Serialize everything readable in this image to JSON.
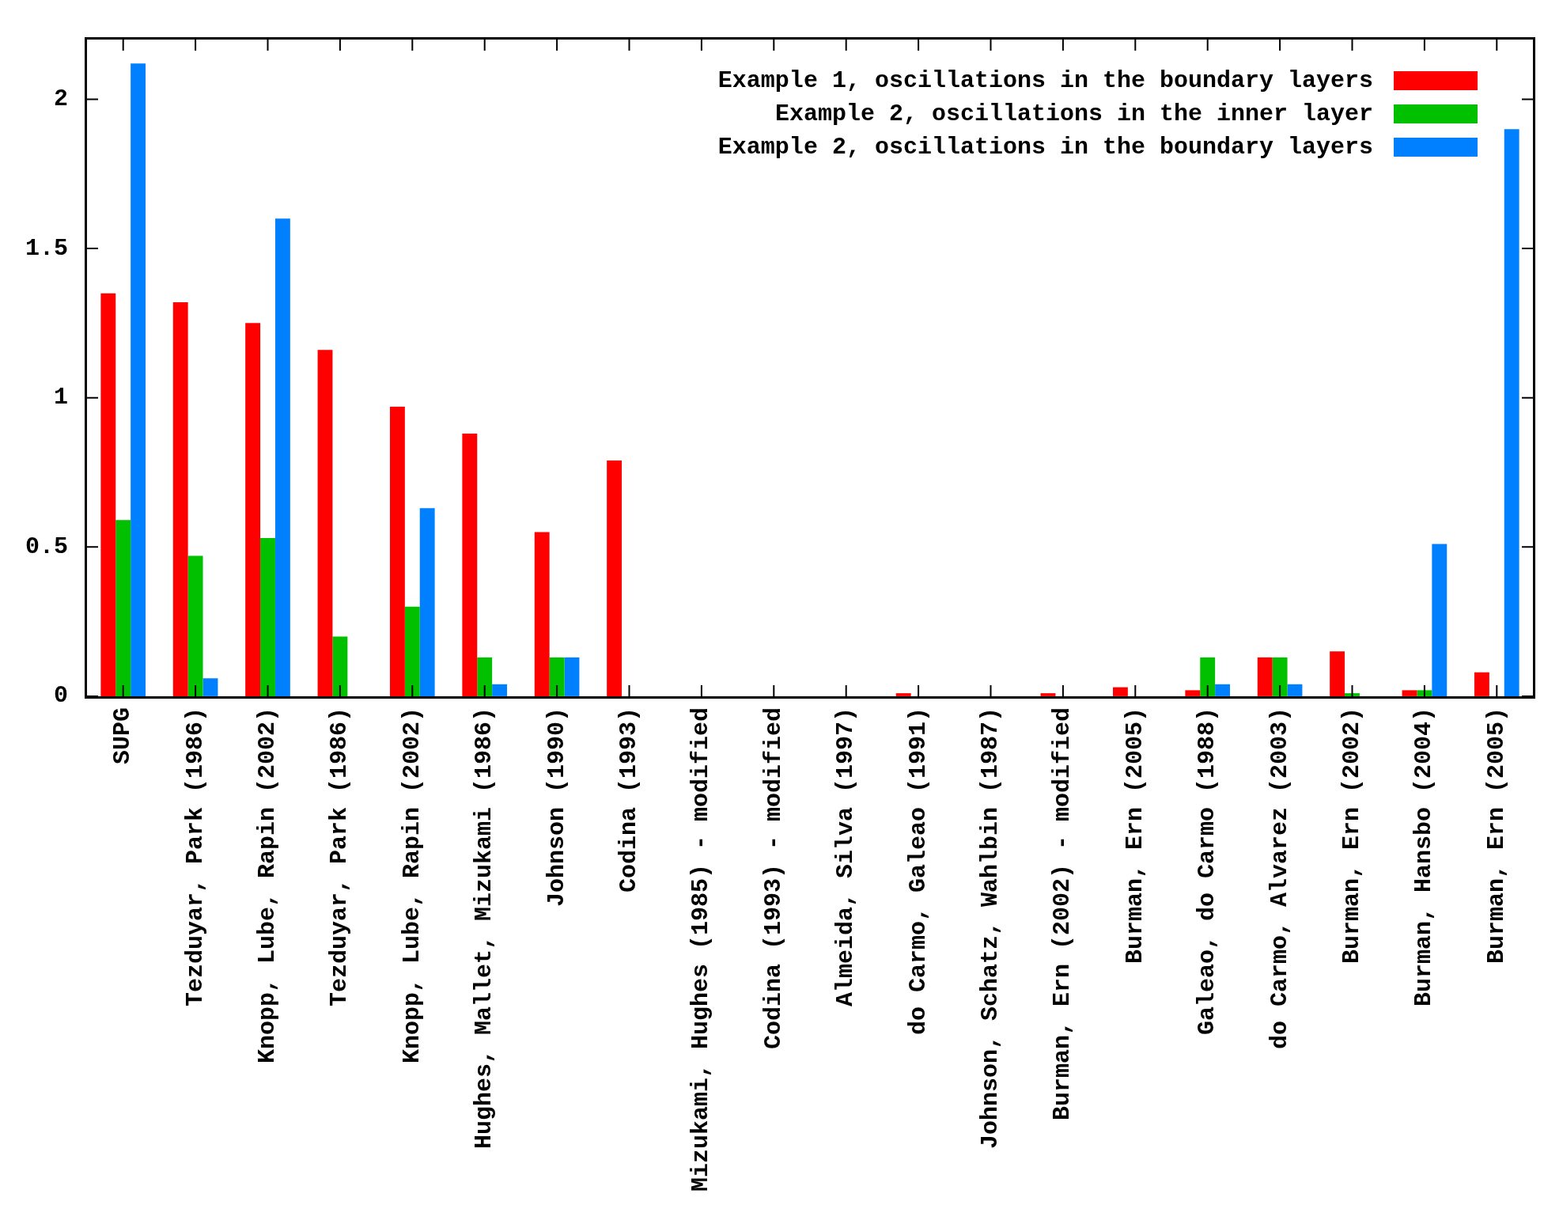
{
  "chart_data": {
    "type": "bar",
    "categories": [
      "SUPG",
      "Tezduyar, Park (1986)",
      "Knopp, Lube, Rapin (2002)",
      "Tezduyar, Park (1986)",
      "Knopp, Lube, Rapin (2002)",
      "Hughes, Mallet, Mizukami (1986)",
      "Johnson (1990)",
      "Codina (1993)",
      "Mizukami, Hughes (1985) - modified",
      "Codina (1993) - modified",
      "Almeida, Silva (1997)",
      "do Carmo, Galeao (1991)",
      "Johnson, Schatz, Wahlbin (1987)",
      "Burman, Ern (2002) - modified",
      "Burman, Ern (2005)",
      "Galeao, do Carmo (1988)",
      "do Carmo, Alvarez (2003)",
      "Burman, Ern (2002)",
      "Burman, Hansbo (2004)",
      "Burman, Ern (2005)"
    ],
    "series": [
      {
        "name": "Example 1, oscillations in the boundary layers",
        "color": "#ff0000",
        "values": [
          1.35,
          1.32,
          1.25,
          1.16,
          0.97,
          0.88,
          0.55,
          0.79,
          0,
          0,
          0,
          0.01,
          0,
          0.01,
          0.03,
          0.02,
          0.13,
          0.15,
          0.02,
          0.08
        ]
      },
      {
        "name": "Example 2, oscillations in the inner layer",
        "color": "#00c000",
        "values": [
          0.59,
          0.47,
          0.53,
          0.2,
          0.3,
          0.13,
          0.13,
          0,
          0,
          0,
          0,
          0,
          0,
          0,
          0,
          0.13,
          0.13,
          0.01,
          0.02,
          0
        ]
      },
      {
        "name": "Example 2, oscillations in the boundary layers",
        "color": "#0080ff",
        "values": [
          2.12,
          0.06,
          1.6,
          0,
          0.63,
          0.04,
          0.13,
          0,
          0,
          0,
          0,
          0,
          0,
          0,
          0,
          0.04,
          0.04,
          0,
          0.51,
          1.9
        ]
      }
    ],
    "ylim": [
      0,
      2.2
    ],
    "yticks": [
      0,
      0.5,
      1,
      1.5,
      2
    ],
    "grid": false,
    "legend": "top right"
  }
}
